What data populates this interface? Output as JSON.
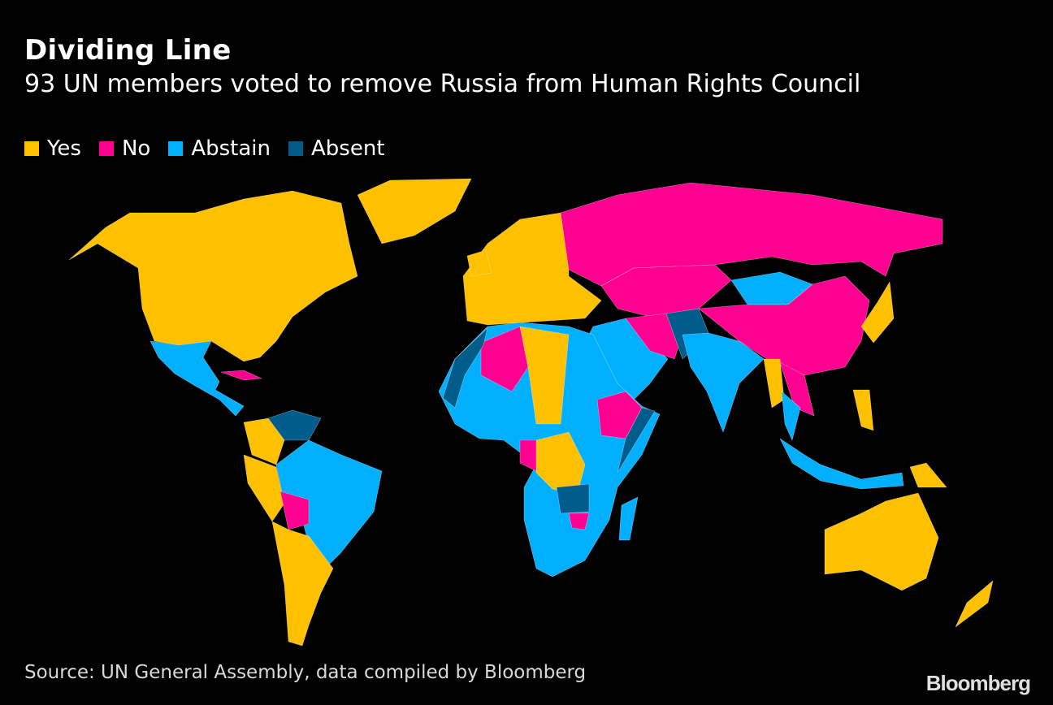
{
  "header": {
    "title": "Dividing Line",
    "subtitle": "93 UN members voted to remove Russia from Human Rights Council"
  },
  "legend": [
    {
      "key": "yes",
      "label": "Yes",
      "color": "#FFC000"
    },
    {
      "key": "no",
      "label": "No",
      "color": "#FF0090"
    },
    {
      "key": "abstain",
      "label": "Abstain",
      "color": "#00B0FF"
    },
    {
      "key": "absent",
      "label": "Absent",
      "color": "#005C8A"
    }
  ],
  "regions": [
    {
      "id": "north-america",
      "vote": "yes"
    },
    {
      "id": "greenland",
      "vote": "yes"
    },
    {
      "id": "mexico-central-america",
      "vote": "abstain"
    },
    {
      "id": "cuba",
      "vote": "no"
    },
    {
      "id": "venezuela",
      "vote": "absent"
    },
    {
      "id": "colombia",
      "vote": "yes"
    },
    {
      "id": "peru",
      "vote": "yes"
    },
    {
      "id": "brazil",
      "vote": "abstain"
    },
    {
      "id": "bolivia",
      "vote": "no"
    },
    {
      "id": "argentina-chile",
      "vote": "yes"
    },
    {
      "id": "europe",
      "vote": "yes"
    },
    {
      "id": "uk",
      "vote": "yes"
    },
    {
      "id": "russia",
      "vote": "no"
    },
    {
      "id": "central-asia",
      "vote": "no"
    },
    {
      "id": "mongolia",
      "vote": "abstain"
    },
    {
      "id": "china",
      "vote": "no"
    },
    {
      "id": "saudi-arabia",
      "vote": "abstain"
    },
    {
      "id": "iran",
      "vote": "no"
    },
    {
      "id": "afghanistan-pakistan",
      "vote": "absent"
    },
    {
      "id": "india",
      "vote": "abstain"
    },
    {
      "id": "myanmar",
      "vote": "yes"
    },
    {
      "id": "vietnam-laos",
      "vote": "no"
    },
    {
      "id": "thailand",
      "vote": "abstain"
    },
    {
      "id": "indonesia",
      "vote": "abstain"
    },
    {
      "id": "papua-new-guinea",
      "vote": "yes"
    },
    {
      "id": "japan",
      "vote": "yes"
    },
    {
      "id": "philippines",
      "vote": "yes"
    },
    {
      "id": "africa",
      "vote": "abstain"
    },
    {
      "id": "algeria",
      "vote": "no"
    },
    {
      "id": "morocco",
      "vote": "absent"
    },
    {
      "id": "libya",
      "vote": "yes"
    },
    {
      "id": "ethiopia",
      "vote": "no"
    },
    {
      "id": "somalia",
      "vote": "absent"
    },
    {
      "id": "dr-congo",
      "vote": "yes"
    },
    {
      "id": "congo",
      "vote": "no"
    },
    {
      "id": "zambia",
      "vote": "absent"
    },
    {
      "id": "zimbabwe",
      "vote": "no"
    },
    {
      "id": "madagascar",
      "vote": "abstain"
    },
    {
      "id": "australia",
      "vote": "yes"
    },
    {
      "id": "new-zealand",
      "vote": "yes"
    }
  ],
  "footer": {
    "source": "Source: UN General Assembly, data compiled by Bloomberg",
    "brand": "Bloomberg"
  }
}
